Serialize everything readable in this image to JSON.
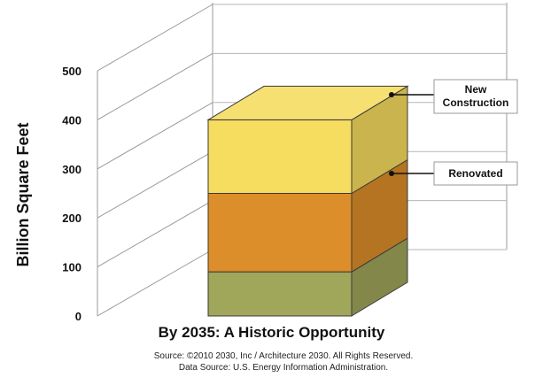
{
  "chart_data": {
    "type": "bar",
    "stacked": true,
    "three_d": true,
    "title": "By 2035: A Historic Opportunity",
    "ylabel": "Billion Square Feet",
    "xlabel": "",
    "ylim": [
      0,
      500
    ],
    "yticks": [
      "0",
      "100",
      "200",
      "300",
      "400",
      "500"
    ],
    "grid": true,
    "categories": [
      ""
    ],
    "series": [
      {
        "name": "",
        "values": [
          90
        ],
        "color": "#a0a65a"
      },
      {
        "name": "Renovated",
        "values": [
          160
        ],
        "color": "#dc8e2a"
      },
      {
        "name": "New Construction",
        "values": [
          150
        ],
        "color": "#f6dc5f"
      }
    ],
    "legend": [
      {
        "line1": "New",
        "line2": "Construction"
      },
      {
        "line1": "Renovated",
        "line2": ""
      }
    ],
    "legend_position": "right"
  },
  "footer": {
    "source": "Source: ©2010 2030, Inc / Architecture 2030. All Rights Reserved.",
    "data_source": "Data Source: U.S. Energy Information Administration."
  }
}
